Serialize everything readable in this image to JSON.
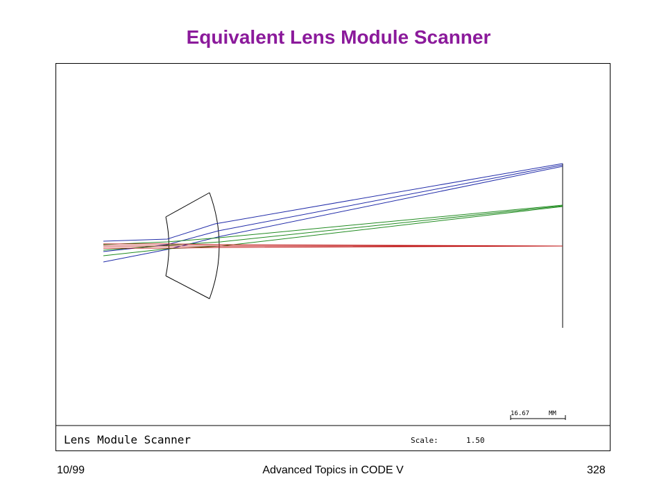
{
  "slide": {
    "title": "Equivalent Lens Module Scanner",
    "footer": {
      "left": "10/99",
      "center": "Advanced Topics in CODE V",
      "right": "328"
    }
  },
  "plot": {
    "caption": "Lens Module Scanner",
    "scale_label": "Scale:",
    "scale_value": "1.50",
    "scale_bar_label": "16.67",
    "scale_bar_unit": "MM"
  },
  "colors": {
    "title": "#8b1a9b",
    "field_top": "#1f2aa8",
    "field_mid": "#1e8a1e",
    "field_axis": "#c01818",
    "lens": "#000000"
  }
}
